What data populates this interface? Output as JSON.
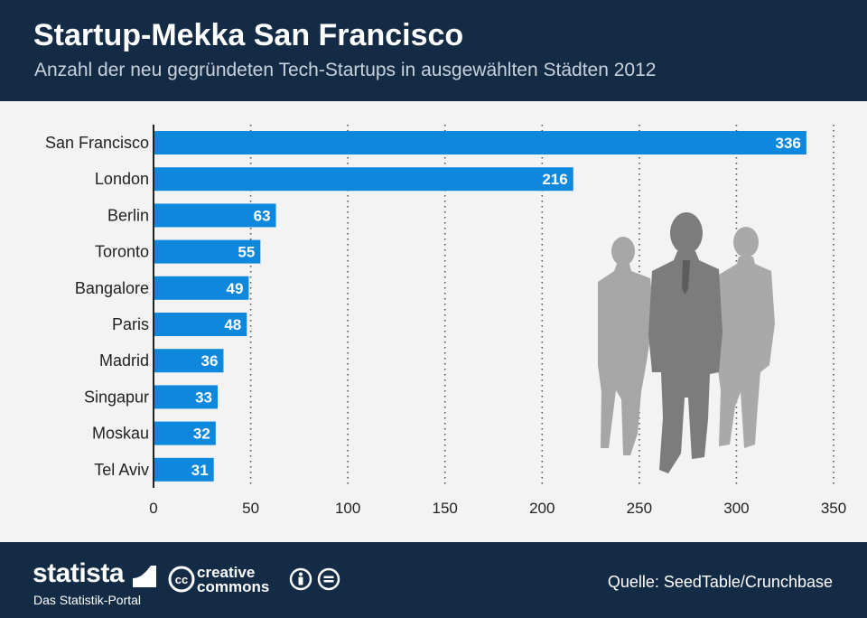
{
  "header": {
    "title": "Startup-Mekka San Francisco",
    "subtitle": "Anzahl der neu gegründeten Tech-Startups in ausgewählten Städten 2012"
  },
  "chart_data": {
    "type": "bar",
    "orientation": "horizontal",
    "categories": [
      "San Francisco",
      "London",
      "Berlin",
      "Toronto",
      "Bangalore",
      "Paris",
      "Madrid",
      "Singapur",
      "Moskau",
      "Tel Aviv"
    ],
    "values": [
      336,
      216,
      63,
      55,
      49,
      48,
      36,
      33,
      32,
      31
    ],
    "xlim": [
      0,
      350
    ],
    "xticks": [
      0,
      50,
      100,
      150,
      200,
      250,
      300,
      350
    ],
    "grid": "vertical dotted",
    "bar_color": "#0d88dc",
    "data_labels": "inside end, white bold"
  },
  "footer": {
    "brand": "statista",
    "tagline": "Das Statistik-Portal",
    "license_line1": "creative",
    "license_line2": "commons",
    "source": "Quelle: SeedTable/Crunchbase"
  },
  "colors": {
    "header_bg": "#142b46",
    "background": "#f3f3f3",
    "bar": "#0d88dc",
    "silhouette_light": "#a4a4a4",
    "silhouette_dark": "#7c7c7c"
  },
  "icons": [
    "business-people-silhouette-icon",
    "creative-commons-icon",
    "attribution-icon",
    "no-derivatives-icon"
  ]
}
